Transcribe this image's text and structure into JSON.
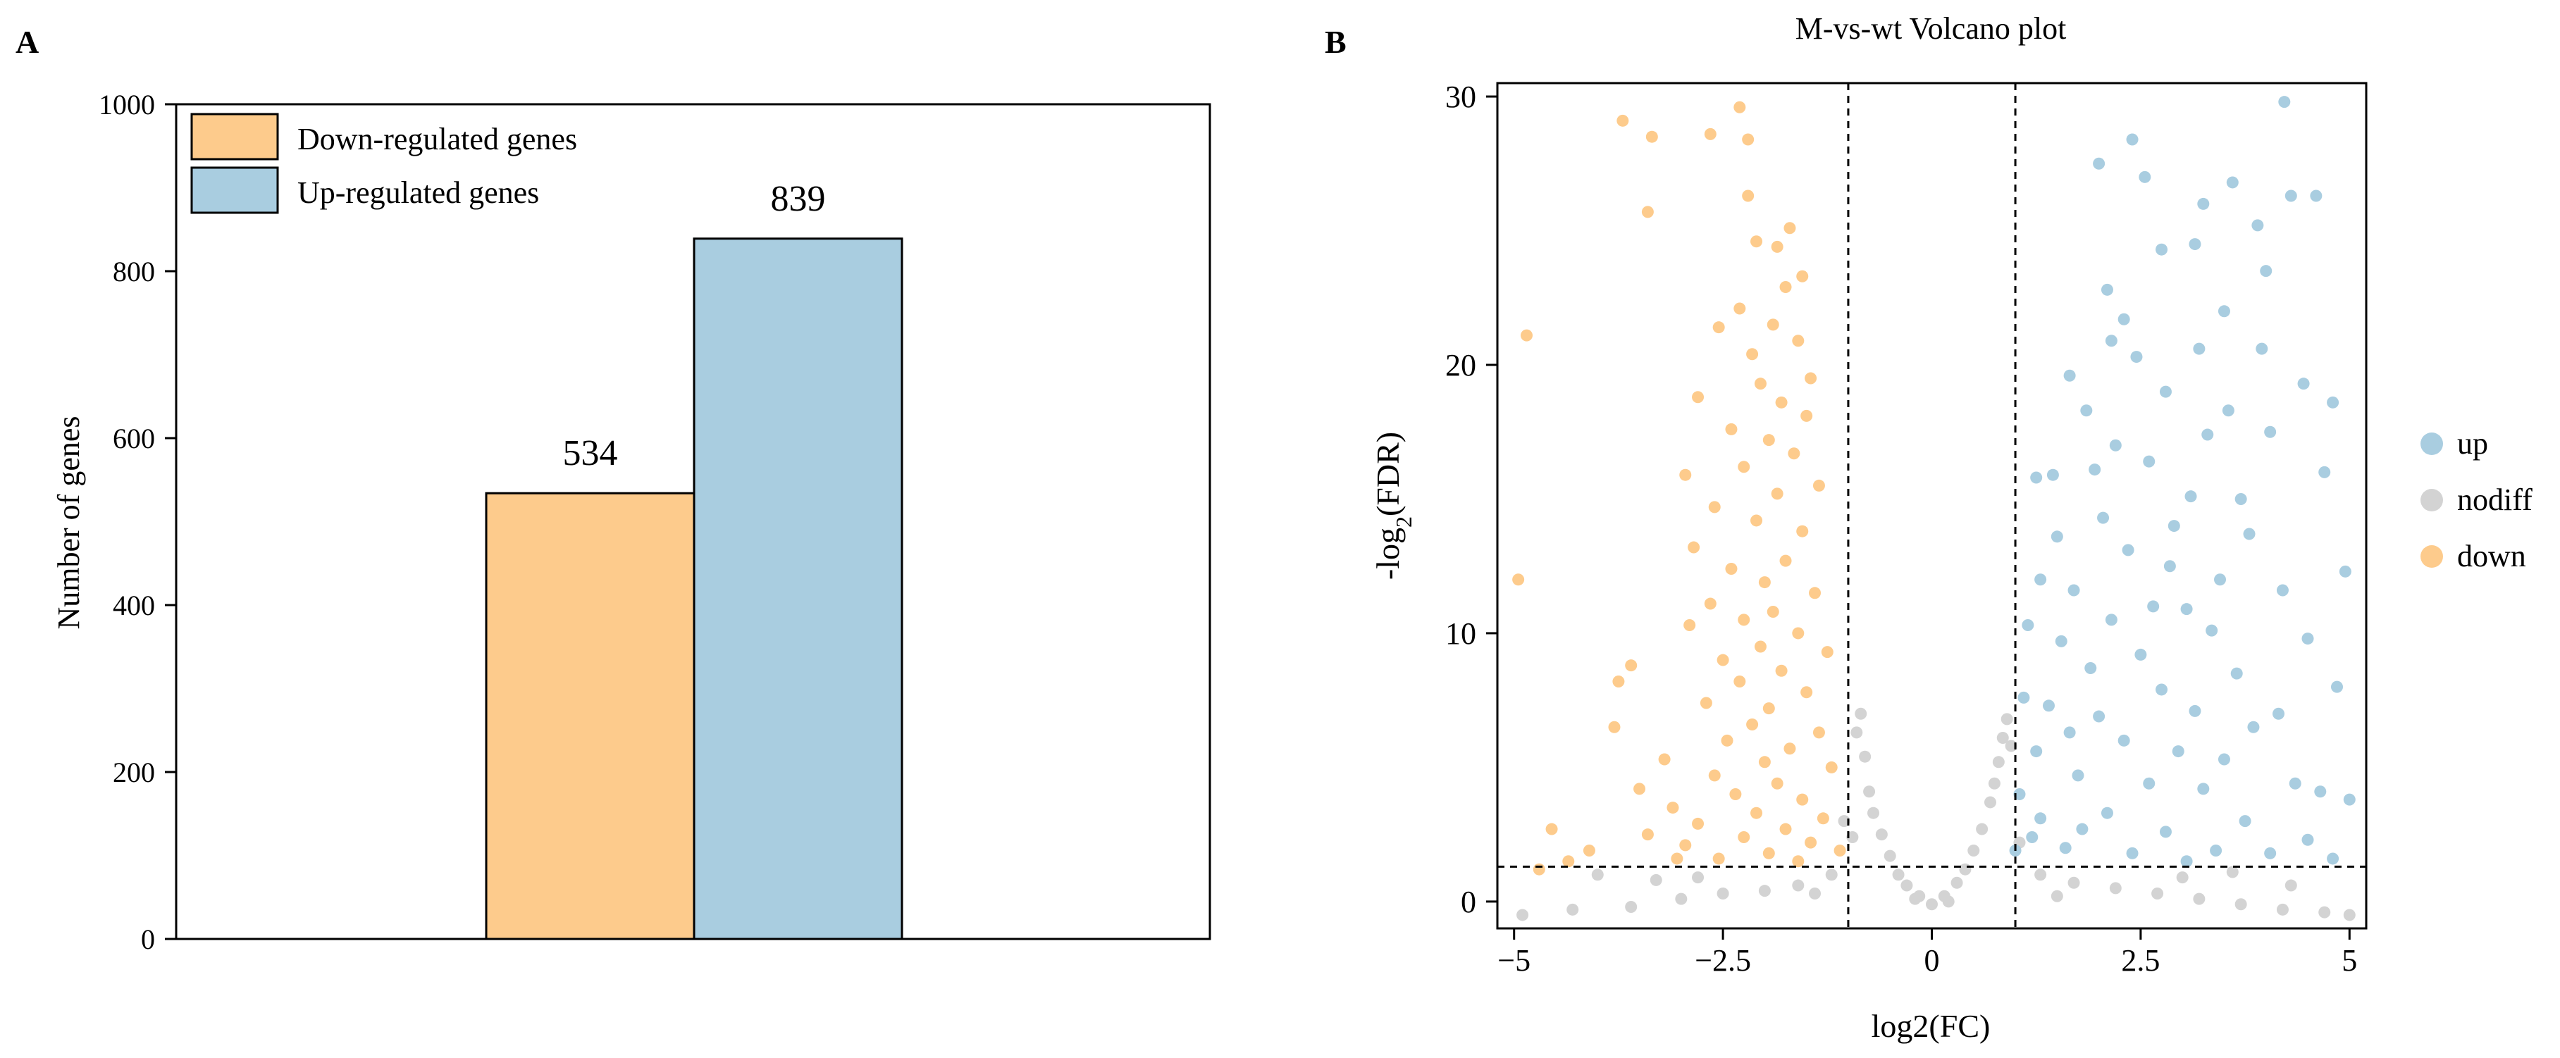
{
  "panels": {
    "a_label": "A",
    "b_label": "B"
  },
  "chart_data": [
    {
      "type": "bar",
      "panel": "A",
      "title": "",
      "categories": [
        "Down-regulated genes",
        "Up-regulated genes"
      ],
      "values": [
        534,
        839
      ],
      "data_labels": [
        "534",
        "839"
      ],
      "colors": [
        "#FDCB8C",
        "#A9CDE0"
      ],
      "xlabel": "",
      "ylabel": "Number of genes",
      "ylim": [
        0,
        1000
      ],
      "yticks": [
        0,
        200,
        400,
        600,
        800,
        1000
      ],
      "ytick_labels": [
        "0",
        "200",
        "400",
        "600",
        "800",
        "1000"
      ],
      "legend": {
        "placement": "top-left",
        "entries": [
          "Down-regulated genes",
          "Up-regulated genes"
        ]
      },
      "grid": false
    },
    {
      "type": "scatter",
      "panel": "B",
      "title": "M-vs-wt Volcano plot",
      "xlabel": "log2(FC)",
      "ylabel_prefix": "-log",
      "ylabel_sub": "2",
      "ylabel_suffix": "(FDR)",
      "xlim": [
        -5.2,
        5.2
      ],
      "ylim": [
        -1,
        30.5
      ],
      "xticks": [
        -5,
        -2.5,
        0,
        2.5,
        5
      ],
      "xtick_labels": [
        "−5",
        "−2.5",
        "0",
        "2.5",
        "5"
      ],
      "yticks": [
        0,
        10,
        20,
        30
      ],
      "ytick_labels": [
        "0",
        "10",
        "20",
        "30"
      ],
      "thresholds": {
        "vertical": [
          -1,
          1
        ],
        "horizontal": 1.3
      },
      "legend": {
        "placement": "right",
        "entries": [
          {
            "label": "up",
            "color": "#A9CDE0"
          },
          {
            "label": "nodiff",
            "color": "#D3D3D3"
          },
          {
            "label": "down",
            "color": "#FDCB8C"
          }
        ]
      },
      "grid": false,
      "series": [
        {
          "name": "up",
          "color": "#A9CDE0",
          "points": [
            [
              4.22,
              29.8
            ],
            [
              2.4,
              28.4
            ],
            [
              4.3,
              26.3
            ],
            [
              4.6,
              26.3
            ],
            [
              2.0,
              27.5
            ],
            [
              2.55,
              27.0
            ],
            [
              3.15,
              24.5
            ],
            [
              3.9,
              25.2
            ],
            [
              3.6,
              26.8
            ],
            [
              2.75,
              24.3
            ],
            [
              3.25,
              26.0
            ],
            [
              4.0,
              23.5
            ],
            [
              2.1,
              22.8
            ],
            [
              3.5,
              22.0
            ],
            [
              2.3,
              21.7
            ],
            [
              3.2,
              20.6
            ],
            [
              3.95,
              20.6
            ],
            [
              2.15,
              20.9
            ],
            [
              2.45,
              20.3
            ],
            [
              1.65,
              19.6
            ],
            [
              4.45,
              19.3
            ],
            [
              4.8,
              18.6
            ],
            [
              2.8,
              19.0
            ],
            [
              3.55,
              18.3
            ],
            [
              1.85,
              18.3
            ],
            [
              2.2,
              17.0
            ],
            [
              3.3,
              17.4
            ],
            [
              4.05,
              17.5
            ],
            [
              1.25,
              15.8
            ],
            [
              1.45,
              15.9
            ],
            [
              2.6,
              16.4
            ],
            [
              3.1,
              15.1
            ],
            [
              4.7,
              16.0
            ],
            [
              1.95,
              16.1
            ],
            [
              3.7,
              15.0
            ],
            [
              2.9,
              14.0
            ],
            [
              2.05,
              14.3
            ],
            [
              1.5,
              13.6
            ],
            [
              3.8,
              13.7
            ],
            [
              2.35,
              13.1
            ],
            [
              4.95,
              12.3
            ],
            [
              1.3,
              12.0
            ],
            [
              2.85,
              12.5
            ],
            [
              3.45,
              12.0
            ],
            [
              1.7,
              11.6
            ],
            [
              4.2,
              11.6
            ],
            [
              2.65,
              11.0
            ],
            [
              3.05,
              10.9
            ],
            [
              2.15,
              10.5
            ],
            [
              1.15,
              10.3
            ],
            [
              3.35,
              10.1
            ],
            [
              4.5,
              9.8
            ],
            [
              1.55,
              9.7
            ],
            [
              2.5,
              9.2
            ],
            [
              4.85,
              8.0
            ],
            [
              1.9,
              8.7
            ],
            [
              3.65,
              8.5
            ],
            [
              1.1,
              7.6
            ],
            [
              2.75,
              7.9
            ],
            [
              1.4,
              7.3
            ],
            [
              3.15,
              7.1
            ],
            [
              4.15,
              7.0
            ],
            [
              2.0,
              6.9
            ],
            [
              3.85,
              6.5
            ],
            [
              1.65,
              6.3
            ],
            [
              2.3,
              6.0
            ],
            [
              1.25,
              5.6
            ],
            [
              2.95,
              5.6
            ],
            [
              3.5,
              5.3
            ],
            [
              4.35,
              4.4
            ],
            [
              4.65,
              4.1
            ],
            [
              1.05,
              4.0
            ],
            [
              1.75,
              4.7
            ],
            [
              2.6,
              4.4
            ],
            [
              3.25,
              4.2
            ],
            [
              5.0,
              3.8
            ],
            [
              1.3,
              3.1
            ],
            [
              2.1,
              3.3
            ],
            [
              3.75,
              3.0
            ],
            [
              2.8,
              2.6
            ],
            [
              4.5,
              2.3
            ],
            [
              1.6,
              2.0
            ],
            [
              2.4,
              1.8
            ],
            [
              3.4,
              1.9
            ],
            [
              4.8,
              1.6
            ],
            [
              1.0,
              1.9
            ],
            [
              1.2,
              2.4
            ],
            [
              1.8,
              2.7
            ],
            [
              3.05,
              1.5
            ],
            [
              4.05,
              1.8
            ]
          ]
        },
        {
          "name": "nodiff",
          "color": "#D3D3D3",
          "points": [
            [
              -4.9,
              -0.5
            ],
            [
              -4.3,
              -0.3
            ],
            [
              -3.6,
              -0.2
            ],
            [
              -3.0,
              0.1
            ],
            [
              -2.5,
              0.3
            ],
            [
              -2.0,
              0.4
            ],
            [
              -1.6,
              0.6
            ],
            [
              -1.2,
              1.0
            ],
            [
              -1.05,
              3.0
            ],
            [
              -0.95,
              2.4
            ],
            [
              -0.9,
              6.3
            ],
            [
              -0.85,
              7.0
            ],
            [
              -0.8,
              5.4
            ],
            [
              -0.75,
              4.1
            ],
            [
              -0.7,
              3.3
            ],
            [
              -0.6,
              2.5
            ],
            [
              -0.5,
              1.7
            ],
            [
              -0.4,
              1.0
            ],
            [
              -0.3,
              0.6
            ],
            [
              -0.15,
              0.2
            ],
            [
              0.0,
              -0.1
            ],
            [
              0.15,
              0.2
            ],
            [
              0.3,
              0.7
            ],
            [
              0.4,
              1.2
            ],
            [
              0.5,
              1.9
            ],
            [
              0.6,
              2.7
            ],
            [
              0.7,
              3.7
            ],
            [
              0.75,
              4.4
            ],
            [
              0.8,
              5.2
            ],
            [
              0.85,
              6.1
            ],
            [
              0.9,
              6.8
            ],
            [
              0.95,
              5.8
            ],
            [
              1.05,
              2.2
            ],
            [
              1.3,
              1.0
            ],
            [
              1.7,
              0.7
            ],
            [
              2.2,
              0.5
            ],
            [
              2.7,
              0.3
            ],
            [
              3.2,
              0.1
            ],
            [
              3.7,
              -0.1
            ],
            [
              4.2,
              -0.3
            ],
            [
              4.7,
              -0.4
            ],
            [
              5.0,
              -0.5
            ],
            [
              -3.3,
              0.8
            ],
            [
              -2.8,
              0.9
            ],
            [
              3.0,
              0.9
            ],
            [
              3.6,
              1.1
            ],
            [
              -1.4,
              0.3
            ],
            [
              1.5,
              0.2
            ],
            [
              -0.2,
              0.1
            ],
            [
              0.2,
              0.0
            ],
            [
              -4.0,
              1.0
            ],
            [
              4.3,
              0.6
            ]
          ]
        },
        {
          "name": "down",
          "color": "#FDCB8C",
          "points": [
            [
              -2.3,
              29.6
            ],
            [
              -3.7,
              29.1
            ],
            [
              -3.35,
              28.5
            ],
            [
              -2.65,
              28.6
            ],
            [
              -2.2,
              28.4
            ],
            [
              -3.4,
              25.7
            ],
            [
              -2.2,
              26.3
            ],
            [
              -1.7,
              25.1
            ],
            [
              -2.1,
              24.6
            ],
            [
              -1.85,
              24.4
            ],
            [
              -1.55,
              23.3
            ],
            [
              -1.75,
              22.9
            ],
            [
              -2.3,
              22.1
            ],
            [
              -1.9,
              21.5
            ],
            [
              -2.55,
              21.4
            ],
            [
              -1.6,
              20.9
            ],
            [
              -4.85,
              21.1
            ],
            [
              -2.15,
              20.4
            ],
            [
              -1.45,
              19.5
            ],
            [
              -2.05,
              19.3
            ],
            [
              -1.8,
              18.6
            ],
            [
              -2.8,
              18.8
            ],
            [
              -1.5,
              18.1
            ],
            [
              -2.4,
              17.6
            ],
            [
              -1.95,
              17.2
            ],
            [
              -1.65,
              16.7
            ],
            [
              -2.25,
              16.2
            ],
            [
              -2.95,
              15.9
            ],
            [
              -1.35,
              15.5
            ],
            [
              -1.85,
              15.2
            ],
            [
              -2.6,
              14.7
            ],
            [
              -2.1,
              14.2
            ],
            [
              -1.55,
              13.8
            ],
            [
              -2.85,
              13.2
            ],
            [
              -1.75,
              12.7
            ],
            [
              -2.4,
              12.4
            ],
            [
              -4.95,
              12.0
            ],
            [
              -2.0,
              11.9
            ],
            [
              -1.4,
              11.5
            ],
            [
              -2.65,
              11.1
            ],
            [
              -1.9,
              10.8
            ],
            [
              -2.25,
              10.5
            ],
            [
              -2.9,
              10.3
            ],
            [
              -1.6,
              10.0
            ],
            [
              -3.6,
              8.8
            ],
            [
              -2.05,
              9.5
            ],
            [
              -1.25,
              9.3
            ],
            [
              -2.5,
              9.0
            ],
            [
              -1.8,
              8.6
            ],
            [
              -3.75,
              8.2
            ],
            [
              -2.3,
              8.2
            ],
            [
              -1.5,
              7.8
            ],
            [
              -2.7,
              7.4
            ],
            [
              -1.95,
              7.2
            ],
            [
              -3.8,
              6.5
            ],
            [
              -2.15,
              6.6
            ],
            [
              -1.35,
              6.3
            ],
            [
              -2.45,
              6.0
            ],
            [
              -1.7,
              5.7
            ],
            [
              -3.2,
              5.3
            ],
            [
              -2.0,
              5.2
            ],
            [
              -1.2,
              5.0
            ],
            [
              -2.6,
              4.7
            ],
            [
              -1.85,
              4.4
            ],
            [
              -3.5,
              4.2
            ],
            [
              -2.35,
              4.0
            ],
            [
              -1.55,
              3.8
            ],
            [
              -3.1,
              3.5
            ],
            [
              -2.1,
              3.3
            ],
            [
              -1.3,
              3.1
            ],
            [
              -2.8,
              2.9
            ],
            [
              -1.75,
              2.7
            ],
            [
              -4.55,
              2.7
            ],
            [
              -3.4,
              2.5
            ],
            [
              -2.25,
              2.4
            ],
            [
              -1.45,
              2.2
            ],
            [
              -4.1,
              1.9
            ],
            [
              -2.95,
              2.1
            ],
            [
              -1.95,
              1.8
            ],
            [
              -1.1,
              1.9
            ],
            [
              -2.55,
              1.6
            ],
            [
              -4.35,
              1.5
            ],
            [
              -4.7,
              1.2
            ],
            [
              -3.05,
              1.6
            ],
            [
              -1.6,
              1.5
            ]
          ]
        }
      ]
    }
  ]
}
